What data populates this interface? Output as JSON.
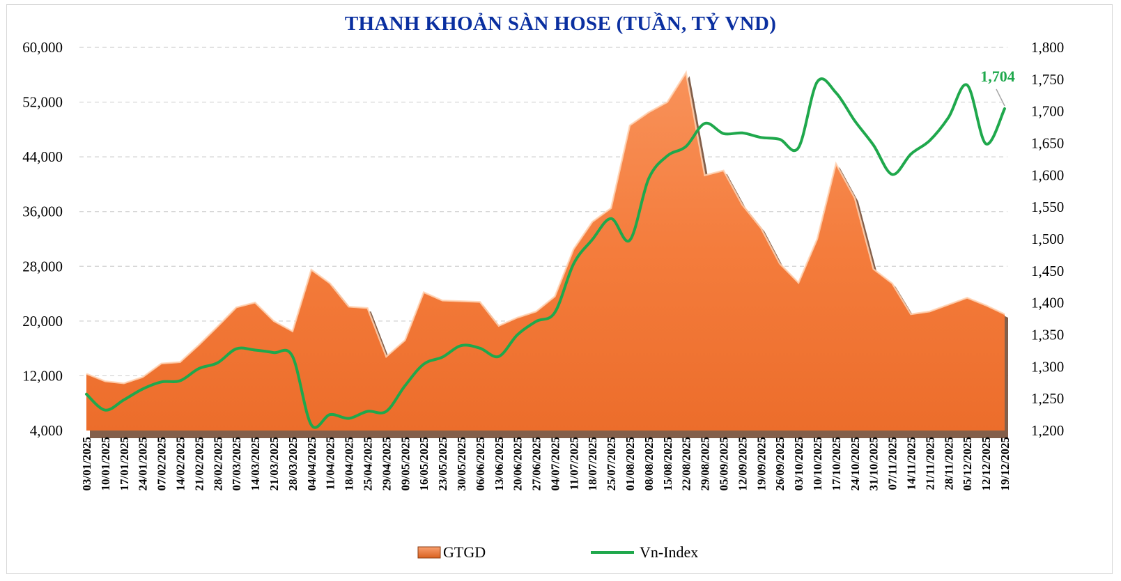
{
  "chart_data": {
    "type": "area+line",
    "title": "THANH KHOẢN SÀN HOSE (TUẦN, TỶ VND)",
    "x": [
      "03/01/2025",
      "10/01/2025",
      "17/01/2025",
      "24/01/2025",
      "07/02/2025",
      "14/02/2025",
      "21/02/2025",
      "28/02/2025",
      "07/03/2025",
      "14/03/2025",
      "21/03/2025",
      "28/03/2025",
      "04/04/2025",
      "11/04/2025",
      "18/04/2025",
      "25/04/2025",
      "29/04/2025",
      "09/05/2025",
      "16/05/2025",
      "23/05/2025",
      "30/05/2025",
      "06/06/2025",
      "13/06/2025",
      "20/06/2025",
      "27/06/2025",
      "04/07/2025",
      "11/07/2025",
      "18/07/2025",
      "25/07/2025",
      "01/08/2025",
      "08/08/2025",
      "15/08/2025",
      "22/08/2025",
      "29/08/2025",
      "05/09/2025",
      "12/09/2025",
      "19/09/2025",
      "26/09/2025",
      "03/10/2025",
      "10/10/2025",
      "17/10/2025",
      "24/10/2025",
      "31/10/2025",
      "07/11/2025",
      "14/11/2025",
      "21/11/2025",
      "28/11/2025",
      "05/12/2025",
      "12/12/2025",
      "19/12/2025"
    ],
    "series": [
      {
        "name": "GTGD",
        "type": "area",
        "axis": "left",
        "color": "#f47c3c",
        "values": [
          12300,
          11200,
          10900,
          11800,
          13800,
          14000,
          16500,
          19200,
          22000,
          22700,
          20000,
          18500,
          27500,
          25500,
          22100,
          21900,
          14800,
          17200,
          24200,
          23000,
          22900,
          22800,
          19300,
          20500,
          21400,
          23600,
          30500,
          34500,
          36500,
          48600,
          50500,
          52000,
          56300,
          41300,
          42000,
          37000,
          33600,
          28400,
          25600,
          32000,
          43000,
          38000,
          27600,
          25500,
          21000,
          21400,
          22400,
          23400,
          22300,
          21000
        ]
      },
      {
        "name": "Vn-Index",
        "type": "line",
        "axis": "right",
        "color": "#1fa84c",
        "values": [
          1257,
          1232,
          1248,
          1265,
          1276,
          1278,
          1297,
          1306,
          1328,
          1326,
          1322,
          1316,
          1209,
          1225,
          1219,
          1230,
          1230,
          1270,
          1304,
          1315,
          1333,
          1329,
          1316,
          1350,
          1371,
          1385,
          1461,
          1499,
          1532,
          1498,
          1594,
          1630,
          1645,
          1681,
          1665,
          1666,
          1659,
          1656,
          1643,
          1746,
          1729,
          1685,
          1647,
          1601,
          1633,
          1654,
          1690,
          1741,
          1649,
          1704
        ]
      }
    ],
    "y_left": {
      "min": 4000,
      "max": 60000,
      "ticks": [
        "60,000",
        "52,000",
        "44,000",
        "36,000",
        "28,000",
        "20,000",
        "12,000",
        "4,000"
      ]
    },
    "y_right": {
      "min": 1200,
      "max": 1800,
      "ticks": [
        "1,800",
        "1,750",
        "1,700",
        "1,650",
        "1,600",
        "1,550",
        "1,500",
        "1,450",
        "1,400",
        "1,350",
        "1,300",
        "1,250",
        "1,200"
      ]
    },
    "grid": "horizontal dashed",
    "legend": {
      "position": "bottom",
      "items": [
        "GTGD",
        "Vn-Index"
      ]
    },
    "annotation": {
      "text": "1,704",
      "series": "Vn-Index",
      "x": "19/12/2025",
      "color": "#1fa84c"
    }
  }
}
